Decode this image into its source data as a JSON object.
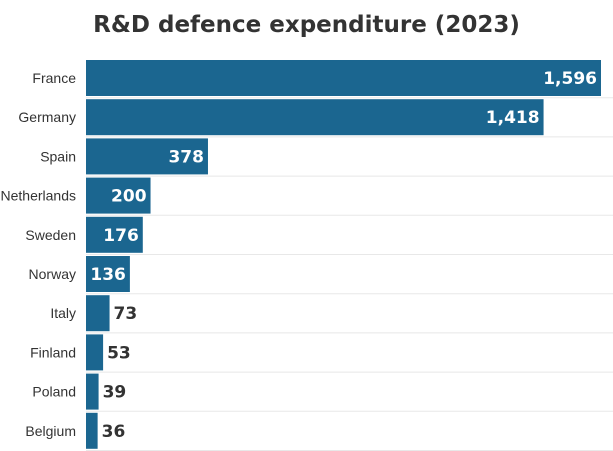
{
  "chart_data": {
    "type": "bar",
    "orientation": "horizontal",
    "title": "R&D defence expenditure (2023)",
    "categories": [
      "France",
      "Germany",
      "Spain",
      "Netherlands",
      "Sweden",
      "Norway",
      "Italy",
      "Finland",
      "Poland",
      "Belgium"
    ],
    "values": [
      1596,
      1418,
      378,
      200,
      176,
      136,
      73,
      53,
      39,
      36
    ],
    "value_labels": [
      "1,596",
      "1,418",
      "378",
      "200",
      "176",
      "136",
      "73",
      "53",
      "39",
      "36"
    ],
    "xlim": [
      0,
      1596
    ],
    "grid": true,
    "colors": {
      "bar": "#1b6690",
      "label_inside": "#ffffff",
      "label_outside": "#333333",
      "grid": "#e8e8e8"
    }
  }
}
